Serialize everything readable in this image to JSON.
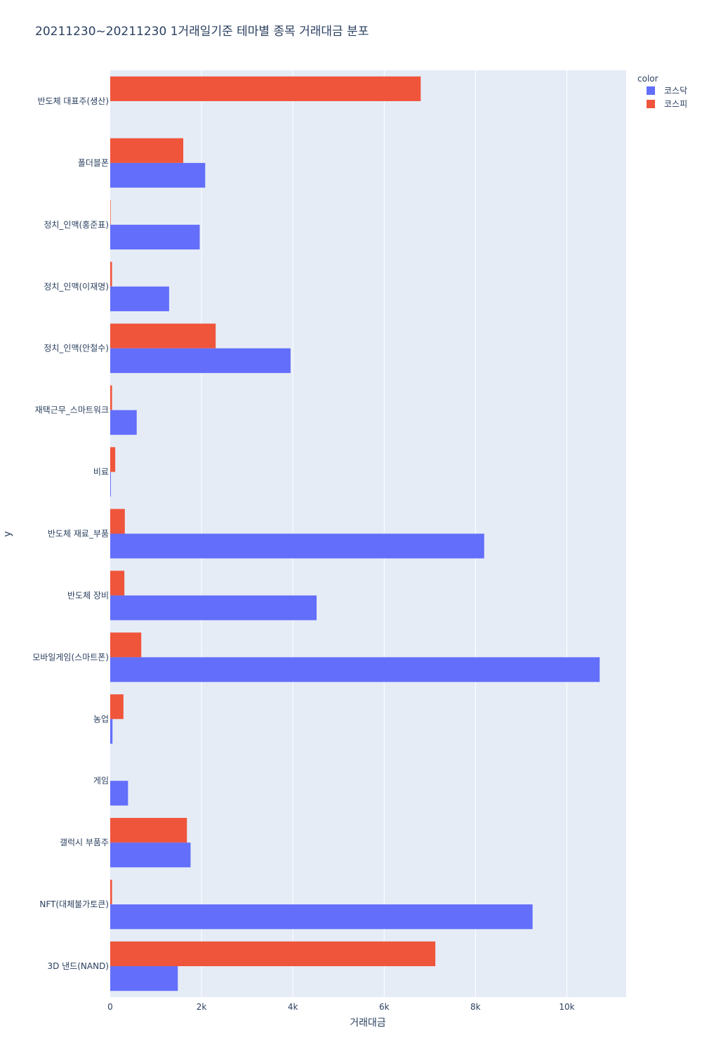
{
  "chart_data": {
    "type": "bar",
    "orientation": "horizontal",
    "title": "20211230~20211230 1거래일기준 테마별 종목 거래대금 분포",
    "xlabel": "거래대금",
    "ylabel": "y",
    "xlim": [
      0,
      11300
    ],
    "x_ticks": [
      0,
      2000,
      4000,
      6000,
      8000,
      10000
    ],
    "x_tick_labels": [
      "0",
      "2k",
      "4k",
      "6k",
      "8k",
      "10k"
    ],
    "grid": true,
    "legend_title": "color",
    "legend_position": "top-right",
    "categories": [
      "반도체 대표주(생산)",
      "폴더블폰",
      "정치_인맥(홍준표)",
      "정치_인맥(이재명)",
      "정치_인맥(안철수)",
      "재택근무_스마트워크",
      "비료",
      "반도체 재료_부품",
      "반도체 장비",
      "모바일게임(스마트폰)",
      "농업",
      "게임",
      "갤럭시 부품주",
      "NFT(대체불가토큰)",
      "3D 낸드(NAND)"
    ],
    "series": [
      {
        "name": "코스닥",
        "color": "#636efa",
        "values": [
          0,
          2080,
          1960,
          1290,
          3950,
          580,
          15,
          8190,
          4520,
          10720,
          50,
          390,
          1760,
          9250,
          1480
        ]
      },
      {
        "name": "코스피",
        "color": "#ef553b",
        "values": [
          6800,
          1600,
          10,
          40,
          2310,
          40,
          110,
          320,
          310,
          680,
          290,
          0,
          1680,
          40,
          7120
        ]
      }
    ]
  }
}
